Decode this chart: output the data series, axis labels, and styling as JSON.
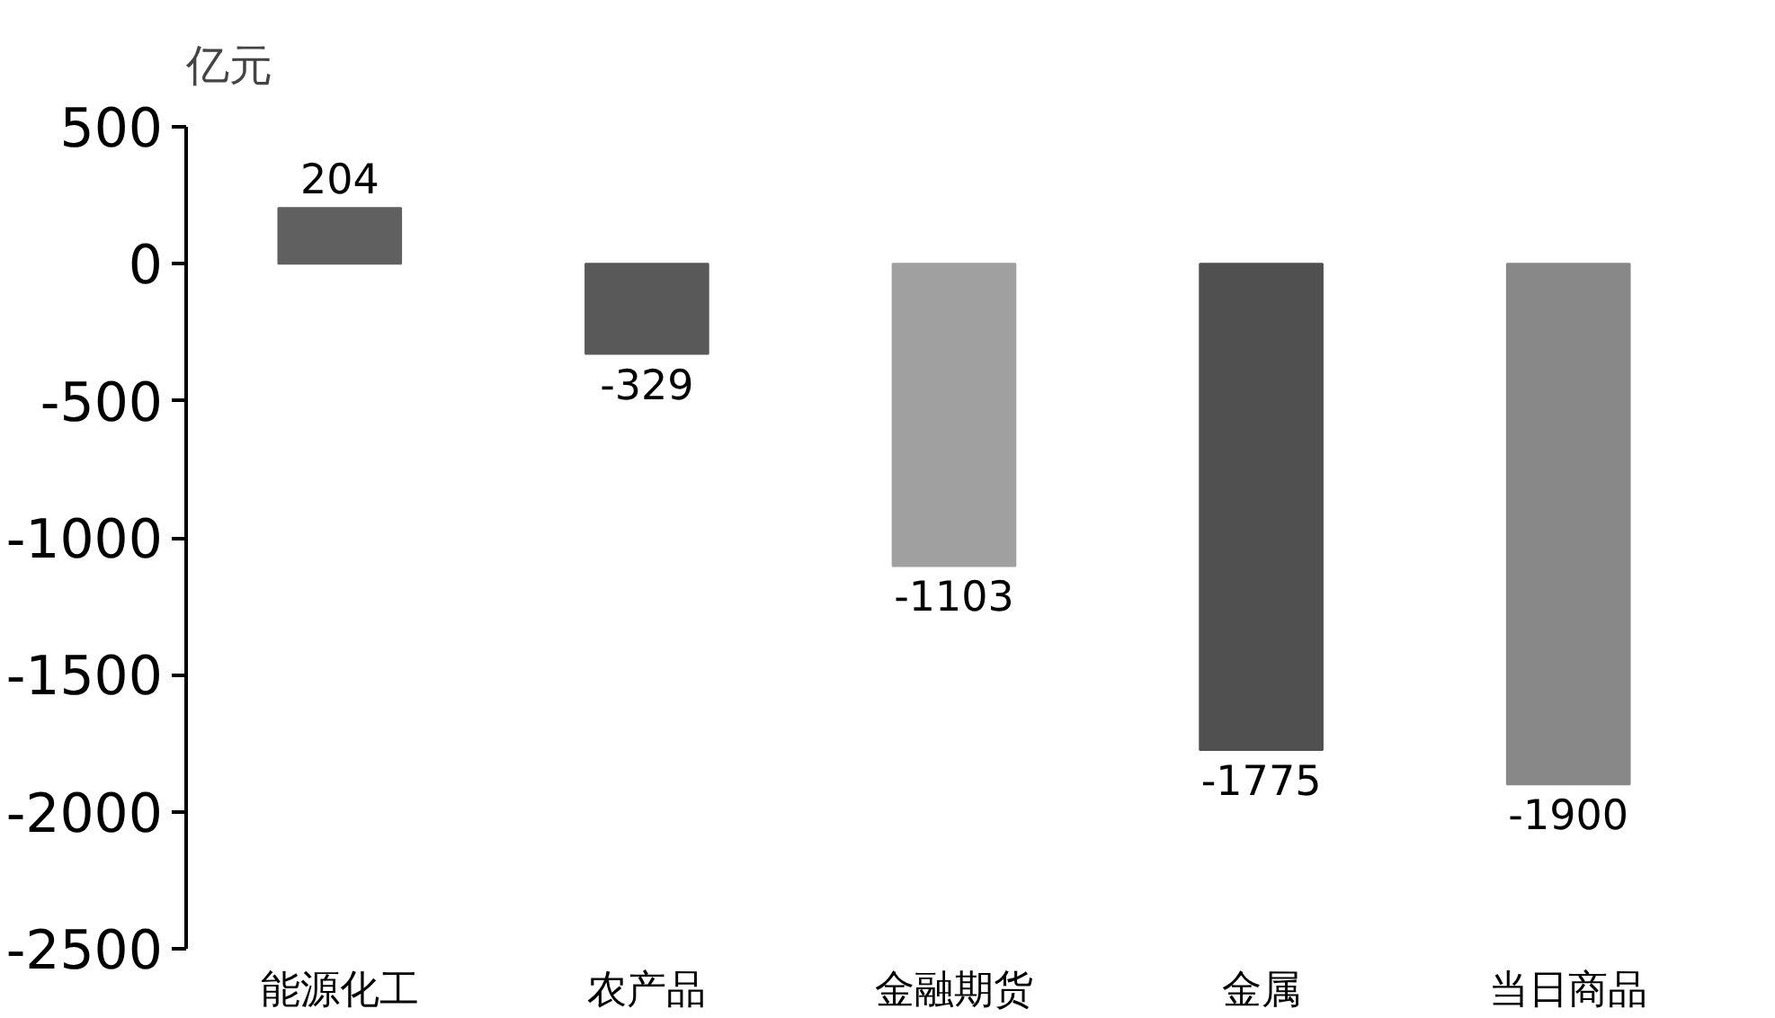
{
  "chart_data": {
    "type": "bar",
    "ylabel": "亿元",
    "categories": [
      "能源化工",
      "农产品",
      "金融期货",
      "金属",
      "当日商品"
    ],
    "values": [
      204,
      -329,
      -1103,
      -1775,
      -1900
    ],
    "colors": [
      "#606060",
      "#595959",
      "#a0a0a0",
      "#505050",
      "#888888"
    ],
    "ylim": [
      -2500,
      500
    ],
    "yticks": [
      -2500,
      -2000,
      -1500,
      -1000,
      -500,
      0,
      500
    ],
    "data_labels": true,
    "grid": false
  }
}
